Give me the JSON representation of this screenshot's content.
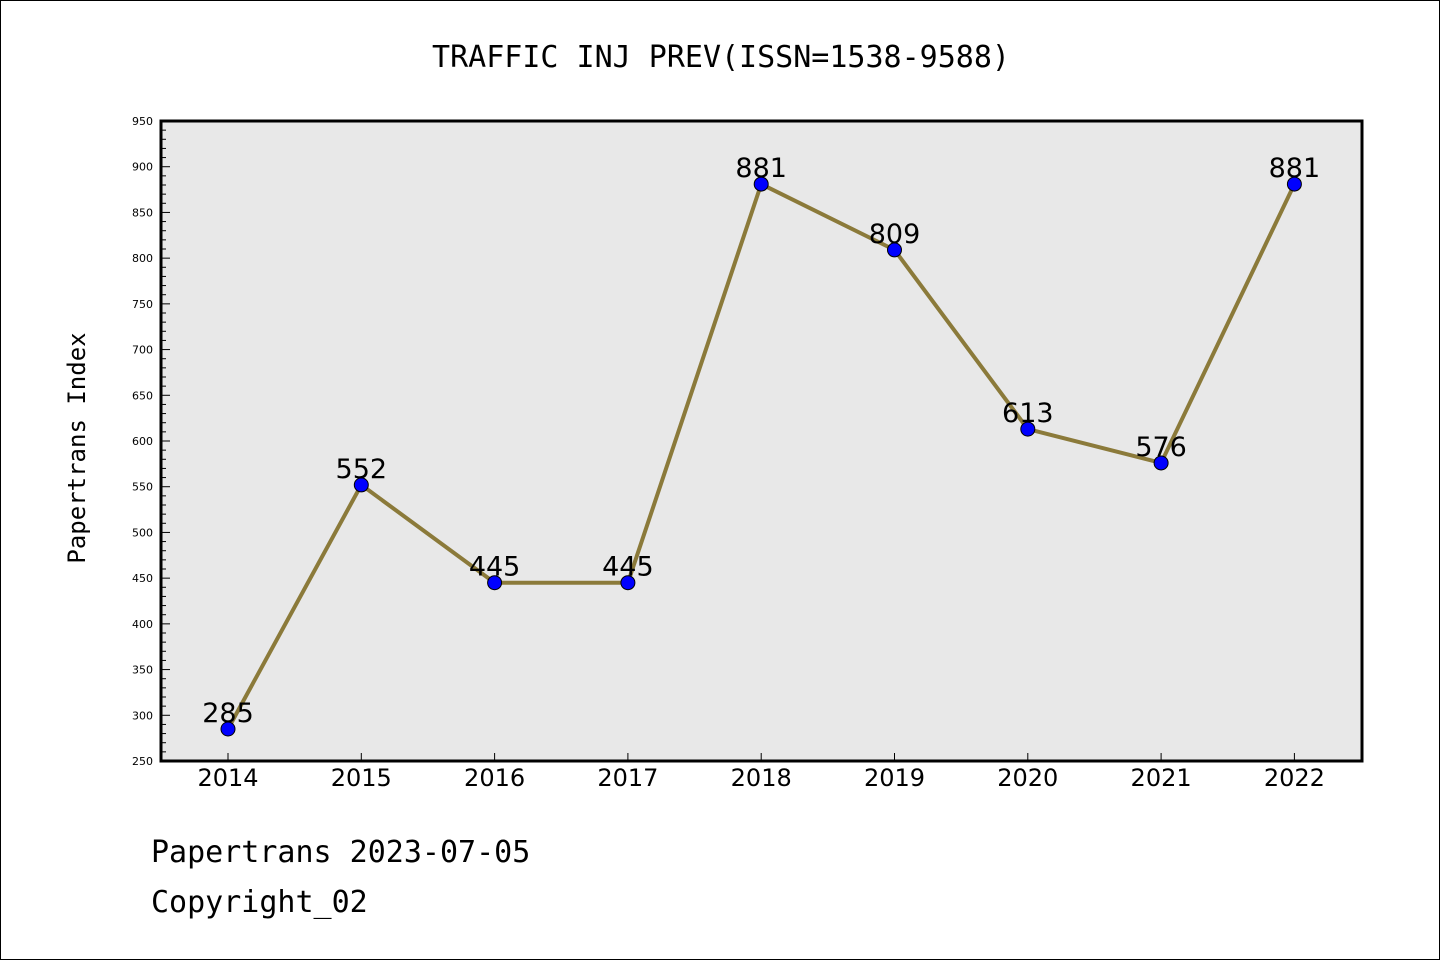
{
  "chart_data": {
    "type": "line",
    "title": "TRAFFIC INJ PREV(ISSN=1538-9588)",
    "xlabel": "",
    "ylabel": "Papertrans Index",
    "categories": [
      "2014",
      "2015",
      "2016",
      "2017",
      "2018",
      "2019",
      "2020",
      "2021",
      "2022"
    ],
    "series": [
      {
        "values": [
          285,
          552,
          445,
          445,
          881,
          809,
          613,
          576,
          881
        ],
        "data_labels": [
          "285",
          "552",
          "445",
          "445",
          "881",
          "809",
          "613",
          "576",
          "881"
        ]
      }
    ],
    "ylim": [
      250,
      950
    ],
    "yticks": [
      "250",
      "300",
      "350",
      "400",
      "450",
      "500",
      "550",
      "600",
      "650",
      "700",
      "750",
      "800",
      "850",
      "900",
      "950"
    ],
    "grid": false,
    "colors": {
      "line": "#8b7a3a",
      "marker": "#0000ff",
      "plot_background": "#e8e8e8"
    }
  },
  "footer": {
    "line1": "Papertrans 2023-07-05",
    "line2": "Copyright_02"
  }
}
